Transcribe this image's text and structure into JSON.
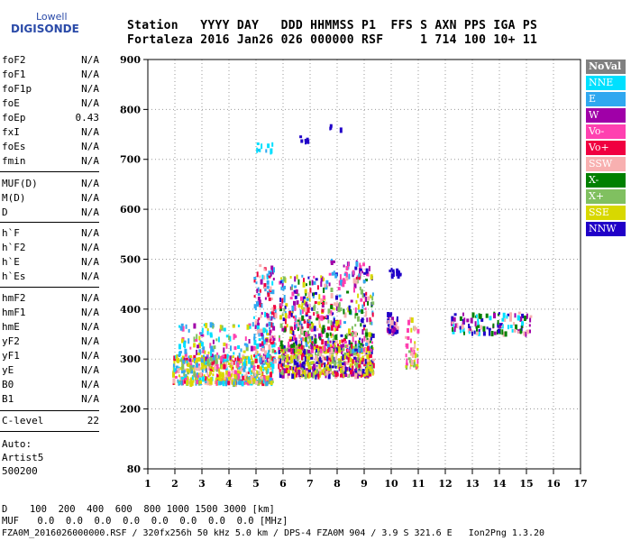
{
  "logo": {
    "line1": "Lowell",
    "line2": "DIGISONDE"
  },
  "header": {
    "line1": "Station   YYYY DAY   DDD HHMMSS P1  FFS S AXN PPS IGA PS",
    "line2": "Fortaleza 2016 Jan26 026 000000 RSF     1 714 100 10+ 11"
  },
  "params": {
    "group1": [
      {
        "name": "foF2",
        "value": "N/A"
      },
      {
        "name": "foF1",
        "value": "N/A"
      },
      {
        "name": "foF1p",
        "value": "N/A"
      },
      {
        "name": "foE",
        "value": "N/A"
      },
      {
        "name": "foEp",
        "value": "0.43"
      },
      {
        "name": "fxI",
        "value": "N/A"
      },
      {
        "name": "foEs",
        "value": "N/A"
      },
      {
        "name": "fmin",
        "value": "N/A"
      }
    ],
    "group2": [
      {
        "name": "MUF(D)",
        "value": "N/A"
      },
      {
        "name": "M(D)",
        "value": "N/A"
      },
      {
        "name": "D",
        "value": "N/A"
      }
    ],
    "group3": [
      {
        "name": "h`F",
        "value": "N/A"
      },
      {
        "name": "h`F2",
        "value": "N/A"
      },
      {
        "name": "h`E",
        "value": "N/A"
      },
      {
        "name": "h`Es",
        "value": "N/A"
      }
    ],
    "group4": [
      {
        "name": "hmF2",
        "value": "N/A"
      },
      {
        "name": "hmF1",
        "value": "N/A"
      },
      {
        "name": "hmE",
        "value": "N/A"
      },
      {
        "name": "yF2",
        "value": "N/A"
      },
      {
        "name": "yF1",
        "value": "N/A"
      },
      {
        "name": "yE",
        "value": "N/A"
      },
      {
        "name": "B0",
        "value": "N/A"
      },
      {
        "name": "B1",
        "value": "N/A"
      }
    ],
    "clevel": {
      "name": "C-level",
      "value": "22"
    }
  },
  "auto": {
    "label": "Auto:",
    "line1": "Artist5",
    "line2": "500200"
  },
  "legend": [
    {
      "label": "NoVal",
      "color": "#808080"
    },
    {
      "label": "NNE",
      "color": "#00e0ff"
    },
    {
      "label": "E",
      "color": "#30a8f0"
    },
    {
      "label": "W",
      "color": "#a000a8"
    },
    {
      "label": "Vo-",
      "color": "#ff40b0"
    },
    {
      "label": "Vo+",
      "color": "#f00040"
    },
    {
      "label": "SSW",
      "color": "#f8b0b0"
    },
    {
      "label": "X-",
      "color": "#008000"
    },
    {
      "label": "X+",
      "color": "#80c060"
    },
    {
      "label": "SSE",
      "color": "#d8d800"
    },
    {
      "label": "NNW",
      "color": "#2000c8"
    }
  ],
  "footer": {
    "dlabel": "D",
    "dvals": "   100  200  400  600  800 1000 1500 3000 [km]",
    "muflabel": "MUF",
    "mufvals": " 0.0  0.0  0.0  0.0  0.0  0.0  0.0  0.0 [MHz]",
    "info": "FZA0M_2016026000000.RSF / 320fx256h 50 kHz 5.0 km / DPS-4 FZA0M 904 / 3.9 S 321.6 E   Ion2Png 1.3.20"
  },
  "chart_data": {
    "type": "scatter",
    "xlim": [
      1,
      17
    ],
    "ylim": [
      80,
      900
    ],
    "xticks": [
      1,
      2,
      3,
      4,
      5,
      6,
      7,
      8,
      9,
      10,
      11,
      12,
      13,
      14,
      15,
      16,
      17
    ],
    "yticks": [
      80,
      200,
      300,
      400,
      500,
      600,
      700,
      800,
      900
    ],
    "grid": true,
    "clusters": [
      {
        "x": [
          1.9,
          5.6
        ],
        "y": [
          255,
          310
        ],
        "density": 520,
        "colors": [
          "SSE",
          "Vo+",
          "Vo-",
          "SSE",
          "SSW",
          "X+",
          "NNE",
          "E",
          "SSE"
        ]
      },
      {
        "x": [
          5.8,
          9.3
        ],
        "y": [
          270,
          330
        ],
        "density": 560,
        "colors": [
          "SSE",
          "SSW",
          "Vo+",
          "W",
          "X+",
          "SSE",
          "NNW"
        ]
      },
      {
        "x": [
          2.1,
          5.6
        ],
        "y": [
          300,
          375
        ],
        "density": 160,
        "colors": [
          "E",
          "NNE",
          "X+",
          "Vo-",
          "W",
          "SSE"
        ]
      },
      {
        "x": [
          5.8,
          9.3
        ],
        "y": [
          320,
          470
        ],
        "density": 520,
        "colors": [
          "Vo+",
          "W",
          "SSW",
          "X+",
          "SSE",
          "NNW",
          "Vo-",
          "E",
          "X-"
        ]
      },
      {
        "x": [
          4.9,
          5.7
        ],
        "y": [
          300,
          490
        ],
        "density": 150,
        "colors": [
          "E",
          "NNE",
          "W",
          "Vo+",
          "SSW"
        ]
      },
      {
        "x": [
          7.6,
          9.2
        ],
        "y": [
          470,
          505
        ],
        "density": 40,
        "colors": [
          "W",
          "NNW",
          "Vo-",
          "E"
        ]
      },
      {
        "x": [
          9.8,
          10.2
        ],
        "y": [
          355,
          395
        ],
        "density": 50,
        "colors": [
          "NNW",
          "W",
          "SSW"
        ]
      },
      {
        "x": [
          10.5,
          11.0
        ],
        "y": [
          285,
          390
        ],
        "density": 45,
        "colors": [
          "SSW",
          "SSE",
          "Vo-",
          "X+"
        ]
      },
      {
        "x": [
          12.2,
          15.2
        ],
        "y": [
          355,
          395
        ],
        "density": 120,
        "colors": [
          "NNW",
          "W",
          "X-",
          "NNE",
          "SSW"
        ]
      },
      {
        "x": [
          5.0,
          5.6
        ],
        "y": [
          720,
          735
        ],
        "density": 10,
        "colors": [
          "NNE",
          "E"
        ]
      },
      {
        "x": [
          6.5,
          7.1
        ],
        "y": [
          738,
          752
        ],
        "density": 6,
        "colors": [
          "NNW"
        ]
      },
      {
        "x": [
          7.6,
          8.1
        ],
        "y": [
          760,
          772
        ],
        "density": 4,
        "colors": [
          "NNW"
        ]
      },
      {
        "x": [
          9.9,
          10.3
        ],
        "y": [
          470,
          485
        ],
        "density": 12,
        "colors": [
          "NNW"
        ]
      }
    ]
  }
}
